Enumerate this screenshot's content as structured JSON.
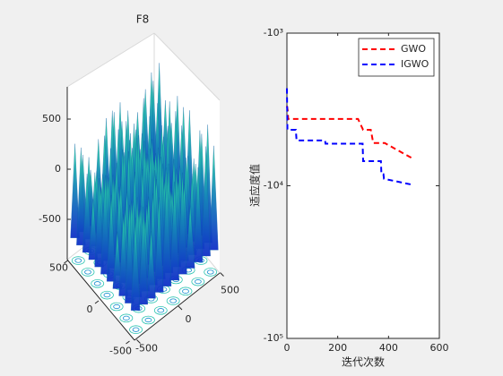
{
  "chart_data": [
    {
      "type": "surface3d",
      "title": "F8",
      "zticks": [
        500,
        0,
        -500
      ],
      "xticks": [
        500,
        0,
        -500
      ],
      "yticks": [
        500,
        0,
        -500
      ]
    },
    {
      "type": "line",
      "xlabel": "迭代次数",
      "ylabel": "适应度值",
      "xlim": [
        0,
        600
      ],
      "xticks": [
        0,
        200,
        400,
        600
      ],
      "ylim": [
        -1000,
        -100000
      ],
      "log_scale": true,
      "yticks": [
        {
          "value": -1000,
          "label": "-10³"
        },
        {
          "value": -10000,
          "label": "-10⁴"
        },
        {
          "value": -100000,
          "label": "-10⁵"
        }
      ],
      "legend": "top-right",
      "series": [
        {
          "name": "GWO",
          "color": "#ff0000",
          "x": [
            0,
            3,
            5,
            280,
            300,
            330,
            340,
            385,
            500
          ],
          "values": [
            -3000,
            -3200,
            -3650,
            -3650,
            -4300,
            -4300,
            -5250,
            -5250,
            -6700
          ]
        },
        {
          "name": "IGWO",
          "color": "#0000ff",
          "x": [
            0,
            2,
            5,
            35,
            38,
            150,
            152,
            298,
            300,
            370,
            372,
            380,
            382,
            500
          ],
          "values": [
            -2300,
            -4300,
            -4300,
            -4300,
            -5050,
            -5050,
            -5300,
            -5300,
            -6900,
            -6900,
            -8400,
            -8400,
            -9000,
            -9900
          ]
        }
      ]
    }
  ]
}
